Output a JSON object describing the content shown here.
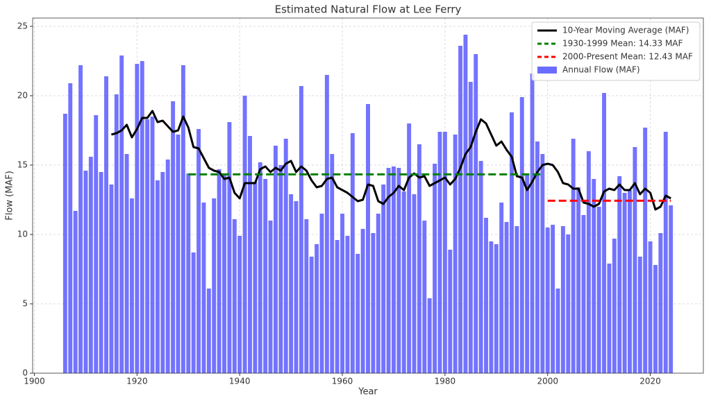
{
  "chart_data": {
    "type": "bar",
    "title": "Estimated Natural Flow at Lee Ferry",
    "x_label": "Year",
    "y_label": "Flow (MAF)",
    "xlim": [
      1899.66,
      2030.34
    ],
    "ylim": [
      0,
      25.6
    ],
    "xticks": [
      1900,
      1920,
      1940,
      1960,
      1980,
      2000,
      2020
    ],
    "yticks": [
      0,
      5,
      10,
      15,
      20,
      25
    ],
    "grid": true,
    "legend": "upper right",
    "series": [
      {
        "name": "10-Year Moving Average (MAF)",
        "type": "line",
        "color": "#000000",
        "x": [
          1915,
          1916,
          1917,
          1918,
          1919,
          1920,
          1921,
          1922,
          1923,
          1924,
          1925,
          1926,
          1927,
          1928,
          1929,
          1930,
          1931,
          1932,
          1933,
          1934,
          1935,
          1936,
          1937,
          1938,
          1939,
          1940,
          1941,
          1942,
          1943,
          1944,
          1945,
          1946,
          1947,
          1948,
          1949,
          1950,
          1951,
          1952,
          1953,
          1954,
          1955,
          1956,
          1957,
          1958,
          1959,
          1960,
          1961,
          1962,
          1963,
          1964,
          1965,
          1966,
          1967,
          1968,
          1969,
          1970,
          1971,
          1972,
          1973,
          1974,
          1975,
          1976,
          1977,
          1978,
          1979,
          1980,
          1981,
          1982,
          1983,
          1984,
          1985,
          1986,
          1987,
          1988,
          1989,
          1990,
          1991,
          1992,
          1993,
          1994,
          1995,
          1996,
          1997,
          1998,
          1999,
          2000,
          2001,
          2002,
          2003,
          2004,
          2005,
          2006,
          2007,
          2008,
          2009,
          2010,
          2011,
          2012,
          2013,
          2014,
          2015,
          2016,
          2017,
          2018,
          2019,
          2020,
          2021,
          2022,
          2023,
          2024
        ],
        "values": [
          17.2,
          17.3,
          17.5,
          17.9,
          17.0,
          17.6,
          18.4,
          18.4,
          18.9,
          18.1,
          18.2,
          17.8,
          17.4,
          17.5,
          18.5,
          17.7,
          16.3,
          16.2,
          15.5,
          14.8,
          14.6,
          14.5,
          14.0,
          14.1,
          13.0,
          12.6,
          13.7,
          13.7,
          13.7,
          14.7,
          14.9,
          14.5,
          14.8,
          14.6,
          15.1,
          15.3,
          14.5,
          14.9,
          14.6,
          13.9,
          13.4,
          13.5,
          14.0,
          14.1,
          13.4,
          13.2,
          13.0,
          12.7,
          12.4,
          12.5,
          13.6,
          13.5,
          12.4,
          12.2,
          12.7,
          13.0,
          13.5,
          13.2,
          14.1,
          14.4,
          14.1,
          14.2,
          13.5,
          13.7,
          13.9,
          14.1,
          13.6,
          14.0,
          14.8,
          15.8,
          16.3,
          17.4,
          18.3,
          18.0,
          17.2,
          16.4,
          16.7,
          16.1,
          15.6,
          14.2,
          14.1,
          13.2,
          13.8,
          14.5,
          15.0,
          15.1,
          15.0,
          14.5,
          13.7,
          13.6,
          13.3,
          13.3,
          12.3,
          12.2,
          12.0,
          12.2,
          13.1,
          13.3,
          13.2,
          13.6,
          13.2,
          13.2,
          13.7,
          12.9,
          13.3,
          13.0,
          11.8,
          12.0,
          12.8,
          12.6
        ]
      },
      {
        "name": "1930-1999 Mean: 14.33 MAF",
        "type": "dashed",
        "color": "#008000",
        "x": [
          1930,
          1999
        ],
        "values": [
          14.33,
          14.33
        ]
      },
      {
        "name": "2000-Present Mean: 12.43 MAF",
        "type": "dashed",
        "color": "#ff0000",
        "x": [
          2000,
          2024
        ],
        "values": [
          12.43,
          12.43
        ]
      },
      {
        "name": "Annual Flow (MAF)",
        "type": "bar",
        "color": "#6b6bff",
        "x": [
          1906,
          1907,
          1908,
          1909,
          1910,
          1911,
          1912,
          1913,
          1914,
          1915,
          1916,
          1917,
          1918,
          1919,
          1920,
          1921,
          1922,
          1923,
          1924,
          1925,
          1926,
          1927,
          1928,
          1929,
          1930,
          1931,
          1932,
          1933,
          1934,
          1935,
          1936,
          1937,
          1938,
          1939,
          1940,
          1941,
          1942,
          1943,
          1944,
          1945,
          1946,
          1947,
          1948,
          1949,
          1950,
          1951,
          1952,
          1953,
          1954,
          1955,
          1956,
          1957,
          1958,
          1959,
          1960,
          1961,
          1962,
          1963,
          1964,
          1965,
          1966,
          1967,
          1968,
          1969,
          1970,
          1971,
          1972,
          1973,
          1974,
          1975,
          1976,
          1977,
          1978,
          1979,
          1980,
          1981,
          1982,
          1983,
          1984,
          1985,
          1986,
          1987,
          1988,
          1989,
          1990,
          1991,
          1992,
          1993,
          1994,
          1995,
          1996,
          1997,
          1998,
          1999,
          2000,
          2001,
          2002,
          2003,
          2004,
          2005,
          2006,
          2007,
          2008,
          2009,
          2010,
          2011,
          2012,
          2013,
          2014,
          2015,
          2016,
          2017,
          2018,
          2019,
          2020,
          2021,
          2022,
          2023,
          2024
        ],
        "values": [
          18.7,
          20.9,
          11.7,
          22.2,
          14.6,
          15.6,
          18.6,
          14.5,
          21.4,
          13.6,
          20.1,
          22.9,
          15.8,
          12.6,
          22.3,
          22.5,
          18.3,
          18.5,
          13.9,
          14.5,
          15.4,
          19.6,
          17.2,
          22.2,
          14.4,
          8.7,
          17.6,
          12.3,
          6.1,
          12.6,
          14.7,
          14.3,
          18.1,
          11.1,
          9.9,
          20.0,
          17.1,
          13.8,
          15.2,
          14.0,
          11.0,
          16.4,
          15.0,
          16.9,
          12.9,
          12.4,
          20.7,
          11.1,
          8.4,
          9.3,
          11.5,
          21.5,
          15.8,
          9.6,
          11.5,
          9.9,
          17.3,
          8.6,
          10.4,
          19.4,
          10.1,
          11.5,
          13.6,
          14.8,
          14.9,
          14.8,
          13.1,
          18.0,
          12.9,
          16.5,
          11.0,
          5.4,
          15.1,
          17.4,
          17.4,
          8.9,
          17.2,
          23.6,
          24.4,
          21.0,
          23.0,
          15.3,
          11.2,
          9.5,
          9.3,
          12.3,
          10.9,
          18.8,
          10.6,
          19.9,
          14.3,
          21.6,
          16.7,
          15.8,
          10.5,
          10.7,
          6.1,
          10.6,
          10.0,
          16.9,
          13.4,
          11.4,
          16.0,
          14.0,
          12.0,
          20.2,
          7.9,
          9.7,
          14.2,
          13.0,
          13.2,
          16.3,
          8.4,
          17.7,
          9.5,
          7.8,
          10.1,
          17.4,
          12.1
        ]
      }
    ]
  }
}
